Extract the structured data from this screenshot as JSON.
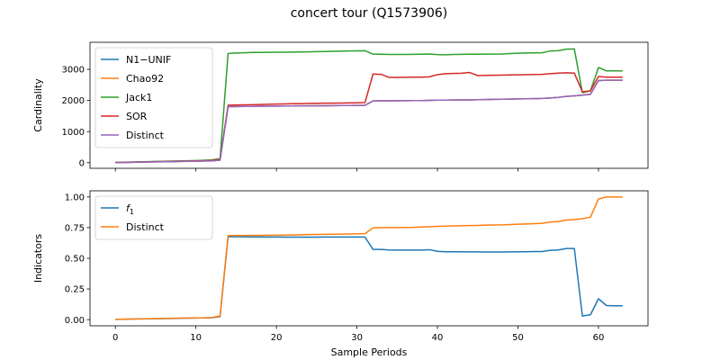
{
  "figure": {
    "title": "concert tour (Q1573906)"
  },
  "chart_data": [
    {
      "type": "line",
      "title": "",
      "xlabel": "",
      "ylabel": "Cardinality",
      "xlim": [
        -3.15,
        66.15
      ],
      "ylim": [
        -180,
        3870
      ],
      "xticks": [
        0,
        10,
        20,
        30,
        40,
        50,
        60
      ],
      "xticklabels_visible": false,
      "yticks": [
        0,
        1000,
        2000,
        3000
      ],
      "grid": false,
      "legend": "upper-left",
      "x": [
        0,
        1,
        2,
        3,
        4,
        5,
        6,
        7,
        8,
        9,
        10,
        11,
        12,
        13,
        14,
        15,
        16,
        17,
        18,
        19,
        20,
        21,
        22,
        23,
        24,
        25,
        26,
        27,
        28,
        29,
        30,
        31,
        32,
        33,
        34,
        35,
        36,
        37,
        38,
        39,
        40,
        41,
        42,
        43,
        44,
        45,
        46,
        47,
        48,
        49,
        50,
        51,
        52,
        53,
        54,
        55,
        56,
        57,
        58,
        59,
        60,
        61,
        62,
        63
      ],
      "series": [
        {
          "name": "N1−UNIF",
          "color": "#1f77b4",
          "values": [
            5,
            9,
            13,
            18,
            22,
            26,
            31,
            35,
            40,
            44,
            49,
            54,
            60,
            85,
            1800,
            1805,
            1808,
            1810,
            1815,
            1818,
            1820,
            1822,
            1824,
            1826,
            1828,
            1830,
            1832,
            1834,
            1836,
            1838,
            1840,
            1845,
            1985,
            1988,
            1990,
            1992,
            1994,
            1996,
            1998,
            2005,
            2010,
            2012,
            2015,
            2018,
            2020,
            2025,
            2030,
            2035,
            2040,
            2045,
            2050,
            2055,
            2060,
            2065,
            2080,
            2100,
            2130,
            2150,
            2170,
            2200,
            2640,
            2650,
            2650,
            2650
          ]
        },
        {
          "name": "Chao92",
          "color": "#ff7f0e",
          "values": [
            5,
            9,
            13,
            18,
            22,
            26,
            31,
            35,
            40,
            44,
            49,
            54,
            60,
            85,
            1800,
            1805,
            1808,
            1810,
            1815,
            1818,
            1820,
            1822,
            1824,
            1826,
            1828,
            1830,
            1832,
            1834,
            1836,
            1838,
            1840,
            1845,
            1985,
            1988,
            1990,
            1992,
            1994,
            1996,
            1998,
            2005,
            2010,
            2012,
            2015,
            2018,
            2020,
            2025,
            2030,
            2035,
            2040,
            2045,
            2050,
            2055,
            2060,
            2065,
            2080,
            2100,
            2130,
            2150,
            2170,
            2200,
            2640,
            2650,
            2650,
            2650
          ]
        },
        {
          "name": "Jack1",
          "color": "#2ca02c",
          "values": [
            10,
            16,
            22,
            28,
            34,
            40,
            46,
            52,
            58,
            64,
            70,
            78,
            90,
            130,
            3510,
            3525,
            3535,
            3545,
            3545,
            3548,
            3550,
            3552,
            3555,
            3558,
            3562,
            3570,
            3575,
            3580,
            3585,
            3590,
            3595,
            3600,
            3490,
            3485,
            3480,
            3478,
            3480,
            3482,
            3488,
            3495,
            3475,
            3470,
            3478,
            3482,
            3485,
            3487,
            3490,
            3492,
            3495,
            3510,
            3520,
            3525,
            3530,
            3535,
            3590,
            3600,
            3650,
            3655,
            2250,
            2310,
            3060,
            2950,
            2950,
            2950
          ]
        },
        {
          "name": "SOR",
          "color": "#d62728",
          "values": [
            8,
            12,
            17,
            22,
            27,
            32,
            37,
            42,
            48,
            53,
            58,
            64,
            75,
            110,
            1850,
            1855,
            1858,
            1862,
            1870,
            1878,
            1885,
            1890,
            1895,
            1900,
            1905,
            1910,
            1912,
            1915,
            1918,
            1920,
            1925,
            1930,
            2850,
            2840,
            2740,
            2742,
            2745,
            2748,
            2750,
            2760,
            2830,
            2860,
            2870,
            2875,
            2900,
            2800,
            2805,
            2810,
            2815,
            2820,
            2825,
            2830,
            2835,
            2840,
            2860,
            2880,
            2890,
            2880,
            2280,
            2310,
            2770,
            2750,
            2750,
            2750
          ]
        },
        {
          "name": "Distinct",
          "color": "#9467bd",
          "values": [
            5,
            9,
            13,
            18,
            22,
            26,
            31,
            35,
            40,
            44,
            49,
            54,
            60,
            85,
            1800,
            1805,
            1808,
            1810,
            1815,
            1818,
            1820,
            1822,
            1824,
            1826,
            1828,
            1830,
            1832,
            1834,
            1836,
            1838,
            1840,
            1845,
            1985,
            1988,
            1990,
            1992,
            1994,
            1996,
            1998,
            2005,
            2010,
            2012,
            2015,
            2018,
            2020,
            2025,
            2030,
            2035,
            2040,
            2045,
            2050,
            2055,
            2060,
            2065,
            2080,
            2100,
            2130,
            2150,
            2170,
            2200,
            2640,
            2650,
            2650,
            2650
          ]
        }
      ]
    },
    {
      "type": "line",
      "title": "",
      "xlabel": "Sample Periods",
      "ylabel": "Indicators",
      "xlim": [
        -3.15,
        66.15
      ],
      "ylim": [
        -0.05,
        1.05
      ],
      "xticks": [
        0,
        10,
        20,
        30,
        40,
        50,
        60
      ],
      "yticks": [
        0.0,
        0.25,
        0.5,
        0.75,
        1.0
      ],
      "yticklabels": [
        "0.00",
        "0.25",
        "0.50",
        "0.75",
        "1.00"
      ],
      "grid": false,
      "legend": "upper-left",
      "x": [
        0,
        1,
        2,
        3,
        4,
        5,
        6,
        7,
        8,
        9,
        10,
        11,
        12,
        13,
        14,
        15,
        16,
        17,
        18,
        19,
        20,
        21,
        22,
        23,
        24,
        25,
        26,
        27,
        28,
        29,
        30,
        31,
        32,
        33,
        34,
        35,
        36,
        37,
        38,
        39,
        40,
        41,
        42,
        43,
        44,
        45,
        46,
        47,
        48,
        49,
        50,
        51,
        52,
        53,
        54,
        55,
        56,
        57,
        58,
        59,
        60,
        61,
        62,
        63
      ],
      "series": [
        {
          "name": "f",
          "subscript": "1",
          "color": "#1f77b4",
          "values": [
            0.002,
            0.003,
            0.005,
            0.006,
            0.007,
            0.008,
            0.009,
            0.01,
            0.011,
            0.012,
            0.013,
            0.014,
            0.016,
            0.025,
            0.676,
            0.676,
            0.675,
            0.674,
            0.674,
            0.673,
            0.673,
            0.672,
            0.672,
            0.672,
            0.672,
            0.672,
            0.673,
            0.673,
            0.673,
            0.673,
            0.673,
            0.673,
            0.572,
            0.572,
            0.568,
            0.567,
            0.567,
            0.567,
            0.567,
            0.57,
            0.557,
            0.553,
            0.553,
            0.553,
            0.552,
            0.552,
            0.551,
            0.551,
            0.551,
            0.552,
            0.553,
            0.553,
            0.555,
            0.555,
            0.565,
            0.568,
            0.58,
            0.58,
            0.03,
            0.04,
            0.17,
            0.115,
            0.113,
            0.113
          ]
        },
        {
          "name": "Distinct",
          "color": "#ff7f0e",
          "values": [
            0.002,
            0.004,
            0.005,
            0.007,
            0.008,
            0.009,
            0.01,
            0.011,
            0.012,
            0.013,
            0.014,
            0.015,
            0.018,
            0.03,
            0.685,
            0.686,
            0.686,
            0.687,
            0.687,
            0.688,
            0.688,
            0.689,
            0.69,
            0.692,
            0.693,
            0.694,
            0.695,
            0.696,
            0.697,
            0.698,
            0.7,
            0.701,
            0.748,
            0.749,
            0.75,
            0.75,
            0.751,
            0.752,
            0.755,
            0.758,
            0.76,
            0.762,
            0.764,
            0.766,
            0.767,
            0.768,
            0.77,
            0.771,
            0.772,
            0.775,
            0.778,
            0.78,
            0.782,
            0.785,
            0.795,
            0.8,
            0.812,
            0.815,
            0.823,
            0.835,
            0.983,
            1.0,
            1.0,
            1.0
          ]
        }
      ]
    }
  ]
}
